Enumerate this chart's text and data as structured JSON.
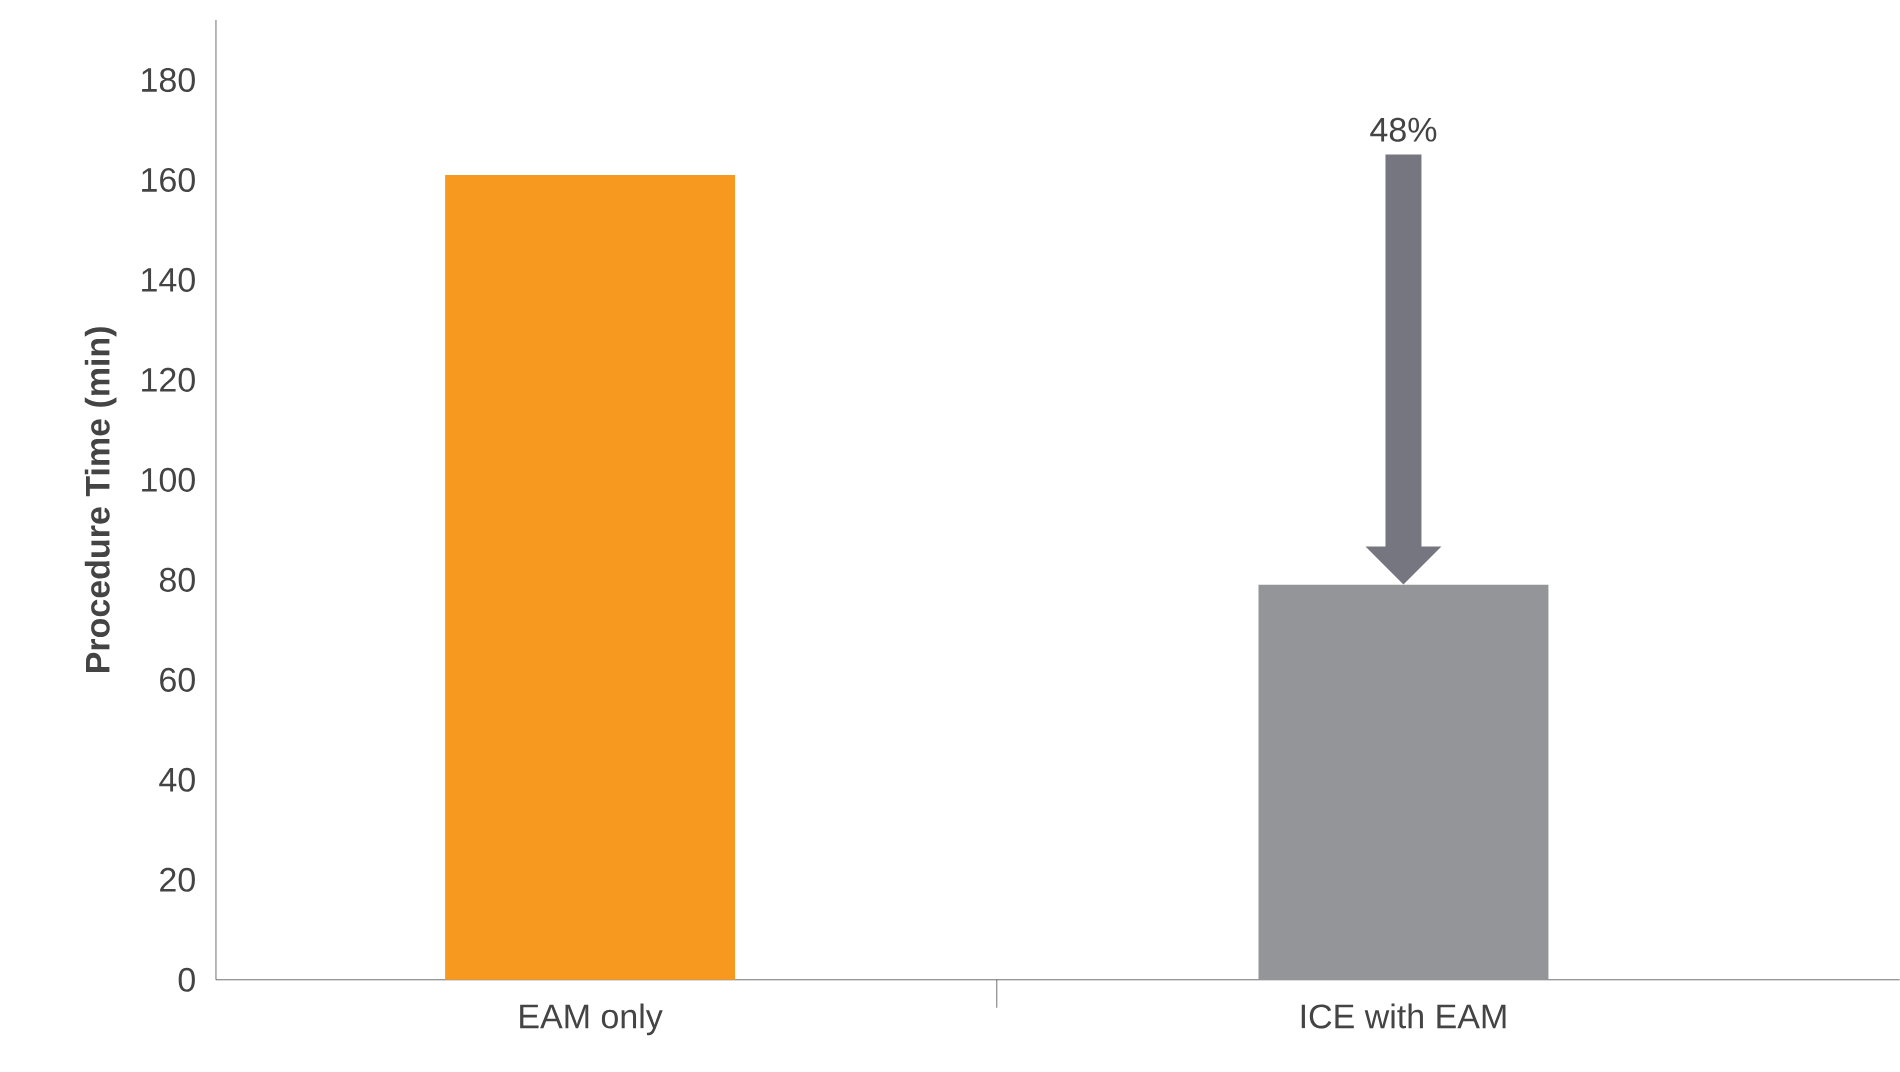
{
  "chart_data": {
    "type": "bar",
    "categories": [
      "EAM only",
      "ICE with EAM"
    ],
    "values": [
      161,
      79
    ],
    "colors": [
      "#f7991f",
      "#939598"
    ],
    "ylabel": "Procedure Time (min)",
    "ylim": [
      0,
      192
    ],
    "yticks": [
      0,
      20,
      40,
      60,
      80,
      100,
      120,
      140,
      160,
      180
    ],
    "annotations": [
      "48%"
    ]
  }
}
